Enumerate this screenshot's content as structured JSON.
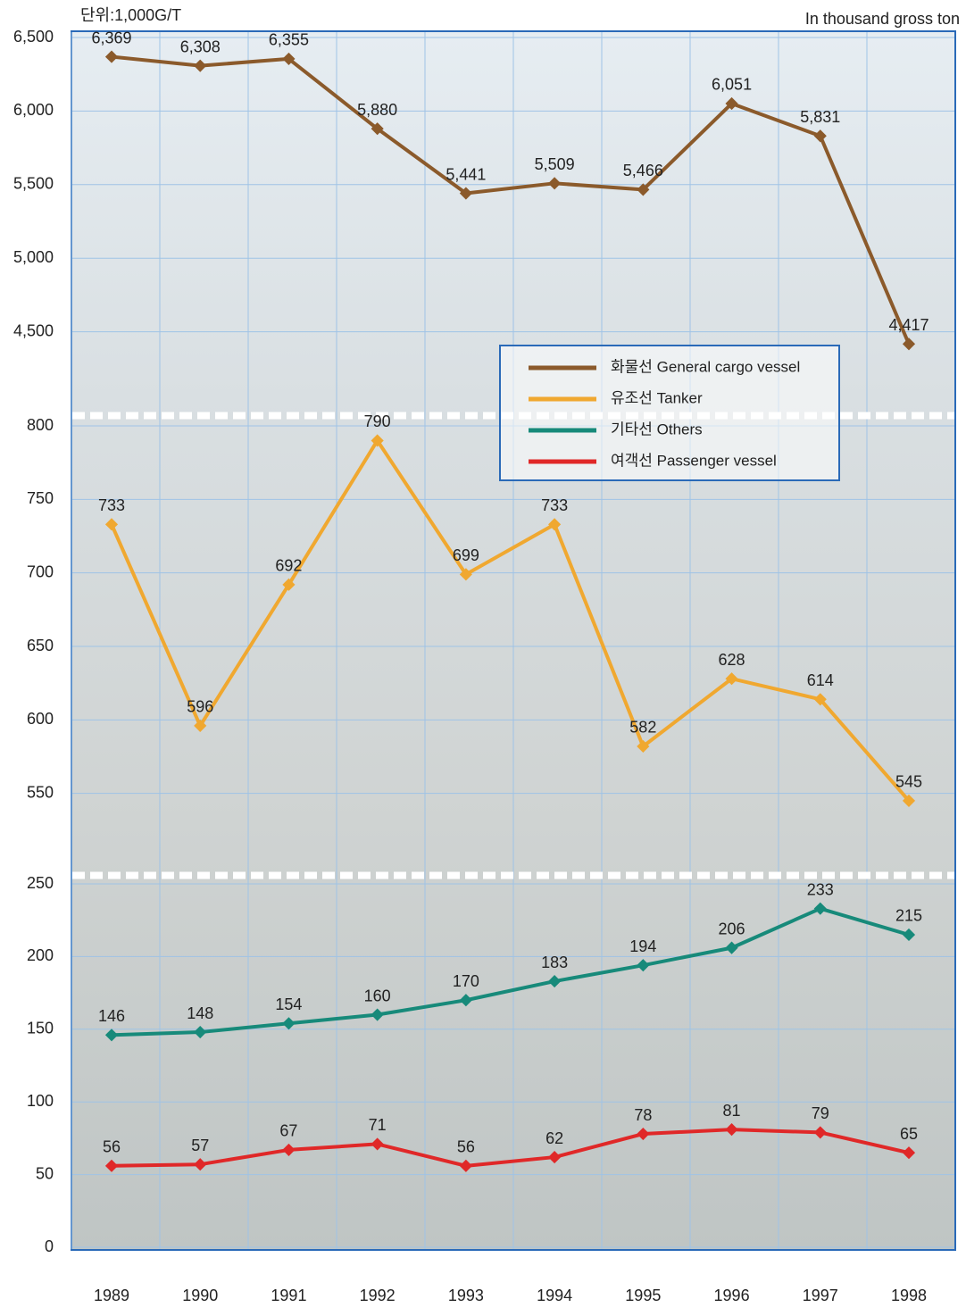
{
  "chart_data": [
    {
      "type": "line",
      "ylabel": "단위:1,000G/T",
      "note": "In thousand gross ton",
      "ylim": [
        4000,
        6500
      ],
      "yticks": [
        {
          "value": 4500,
          "label": "4,500"
        },
        {
          "value": 5000,
          "label": "5,000"
        },
        {
          "value": 5500,
          "label": "5,500"
        },
        {
          "value": 6000,
          "label": "6,000"
        },
        {
          "value": 6500,
          "label": "6,500"
        }
      ],
      "grid": true,
      "series": [
        {
          "name": "화물선 General cargo vessel",
          "color": "#8b5a2b",
          "values": [
            6369,
            6308,
            6355,
            5880,
            5441,
            5509,
            5466,
            6051,
            5831,
            4417
          ],
          "value_labels": [
            "6,369",
            "6,308",
            "6,355",
            "5,880",
            "5,441",
            "5,509",
            "5,466",
            "6,051",
            "5,831",
            "4,417"
          ]
        }
      ]
    },
    {
      "type": "line",
      "ylim": [
        500,
        800
      ],
      "yticks": [
        550,
        600,
        650,
        700,
        750,
        800
      ],
      "grid": true,
      "series": [
        {
          "name": "유조선 Tanker",
          "color": "#f0a830",
          "values": [
            733,
            596,
            692,
            790,
            699,
            733,
            582,
            628,
            614,
            545
          ]
        }
      ]
    },
    {
      "type": "line",
      "ylim": [
        0,
        250
      ],
      "yticks": [
        0,
        50,
        100,
        150,
        200,
        250
      ],
      "grid": true,
      "categories": [
        "1989",
        "1990",
        "1991",
        "1992",
        "1993",
        "1994",
        "1995",
        "1996",
        "1997",
        "1998"
      ],
      "series": [
        {
          "name": "기타선 Others",
          "color": "#178a7a",
          "values": [
            146,
            148,
            154,
            160,
            170,
            183,
            194,
            206,
            233,
            215
          ]
        },
        {
          "name": "여객선 Passenger vessel",
          "color": "#e02828",
          "values": [
            56,
            57,
            67,
            71,
            56,
            62,
            78,
            81,
            79,
            65
          ]
        }
      ]
    }
  ]
}
